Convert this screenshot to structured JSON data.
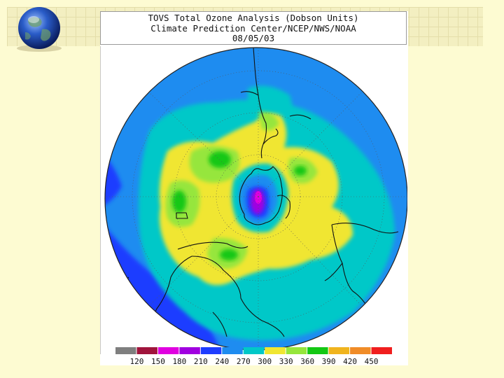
{
  "title": {
    "line1": "TOVS Total Ozone Analysis (Dobson Units)",
    "line2": "Climate Prediction Center/NCEP/NWS/NOAA",
    "line3": "08/05/03"
  },
  "icons": {
    "globe": "globe-icon"
  },
  "map": {
    "projection": "north-polar-stereographic",
    "colors": {
      "gray": "#7f7f7f",
      "maroon": "#a0143c",
      "magenta": "#e000e0",
      "purple": "#a000e0",
      "blue": "#1e3cff",
      "medium_blue": "#1e8cf0",
      "cyan": "#00c8c8",
      "yellow": "#f0e632",
      "light_green": "#96e63c",
      "green": "#14c814",
      "gold": "#f0b41e",
      "orange": "#f08c28",
      "red": "#f01e1e"
    }
  },
  "legend": {
    "ticks": [
      "120",
      "150",
      "180",
      "210",
      "240",
      "270",
      "300",
      "330",
      "360",
      "390",
      "420",
      "450"
    ],
    "colors": [
      "#7f7f7f",
      "#a0143c",
      "#e000e0",
      "#a000e0",
      "#1e3cff",
      "#1e8cf0",
      "#00c8c8",
      "#f0e632",
      "#96e63c",
      "#14c814",
      "#f0b41e",
      "#f08c28",
      "#f01e1e"
    ]
  }
}
